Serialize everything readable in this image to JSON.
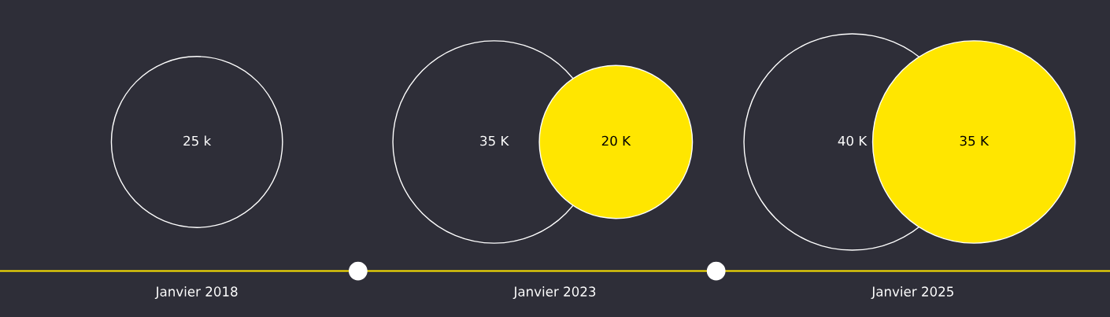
{
  "chart_data": {
    "type": "other",
    "categories": [
      "Janvier 2018",
      "Janvier 2023",
      "Janvier 2025"
    ],
    "series": [
      {
        "color": "#ffffff",
        "values": [
          25,
          35,
          40
        ],
        "value_labels": [
          "25 k",
          "35 K",
          "40 K"
        ]
      },
      {
        "color": "#ffe600",
        "values": [
          null,
          20,
          35
        ],
        "value_labels": [
          null,
          "20 K",
          "35 K"
        ]
      }
    ]
  }
}
